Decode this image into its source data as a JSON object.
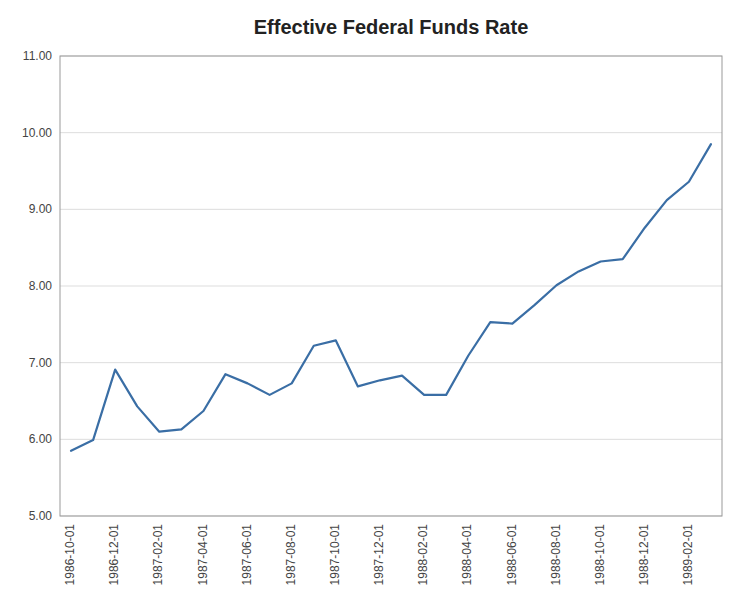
{
  "chart_data": {
    "type": "line",
    "title": "Effective Federal Funds Rate",
    "categories": [
      "1986-10-01",
      null,
      "1986-12-01",
      null,
      "1987-02-01",
      null,
      "1987-04-01",
      null,
      "1987-06-01",
      null,
      "1987-08-01",
      null,
      "1987-10-01",
      null,
      "1987-12-01",
      null,
      "1988-02-01",
      null,
      "1988-04-01",
      null,
      "1988-06-01",
      null,
      "1988-08-01",
      null,
      "1988-10-01",
      null,
      "1988-12-01",
      null,
      "1989-02-01",
      null
    ],
    "values": [
      5.85,
      5.99,
      6.91,
      6.43,
      6.1,
      6.13,
      6.37,
      6.85,
      6.73,
      6.58,
      6.73,
      7.22,
      7.29,
      6.69,
      6.77,
      6.83,
      6.58,
      6.58,
      7.09,
      7.53,
      7.51,
      7.75,
      8.01,
      8.19,
      8.32,
      8.35,
      8.76,
      9.12,
      9.36,
      9.85
    ],
    "color": "#3A6EA5",
    "ylim": [
      5.0,
      11.0
    ],
    "yticks": [
      {
        "value": 5.0,
        "label": "5.00"
      },
      {
        "value": 6.0,
        "label": "6.00"
      },
      {
        "value": 7.0,
        "label": "7.00"
      },
      {
        "value": 8.0,
        "label": "8.00"
      },
      {
        "value": 9.0,
        "label": "9.00"
      },
      {
        "value": 10.0,
        "label": "10.00"
      },
      {
        "value": 11.0,
        "label": "11.00"
      }
    ],
    "grid": true
  }
}
